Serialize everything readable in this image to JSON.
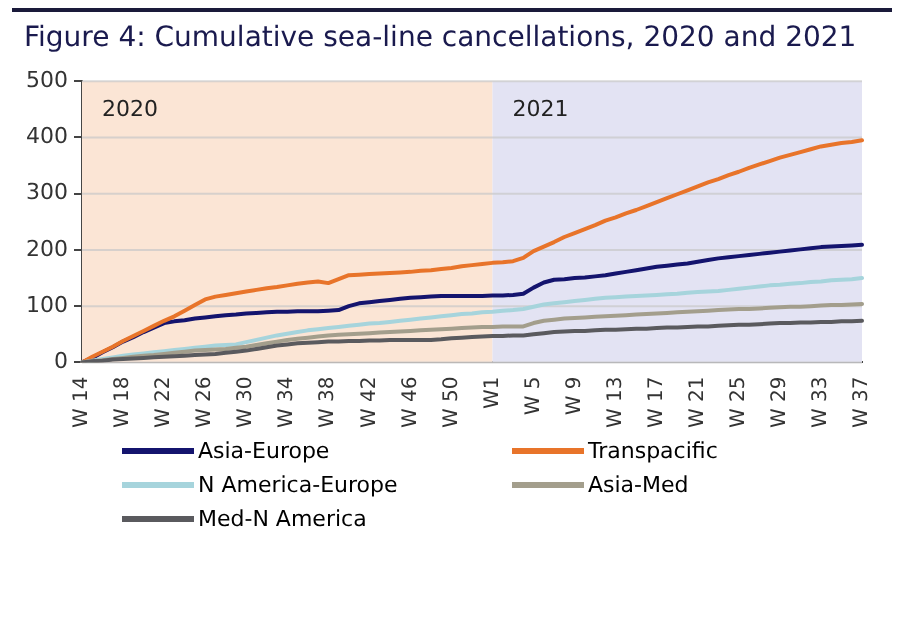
{
  "chart_data": {
    "type": "line",
    "title": "Figure 4: Cumulative sea-line cancellations, 2020 and 2021",
    "categories": [
      "W 14",
      null,
      null,
      null,
      "W 18",
      null,
      null,
      null,
      "W 22",
      null,
      null,
      null,
      "W 26",
      null,
      null,
      null,
      "W 30",
      null,
      null,
      null,
      "W 34",
      null,
      null,
      null,
      "W 38",
      null,
      null,
      null,
      "W 42",
      null,
      null,
      null,
      "W 46",
      null,
      null,
      null,
      "W 50",
      null,
      null,
      null,
      "W1",
      null,
      null,
      null,
      "W 5",
      null,
      null,
      null,
      "W 9",
      null,
      null,
      null,
      "W 13",
      null,
      null,
      null,
      "W 17",
      null,
      null,
      null,
      "W 21",
      null,
      null,
      null,
      "W 25",
      null,
      null,
      null,
      "W 29",
      null,
      null,
      null,
      "W 33",
      null,
      null,
      null,
      "W 37"
    ],
    "series": [
      {
        "name": "Asia-Europe",
        "color": "#14146e",
        "values": [
          0,
          8,
          18,
          27,
          37,
          45,
          54,
          62,
          70,
          73,
          75,
          78,
          80,
          82,
          84,
          85,
          87,
          88,
          89,
          90,
          90,
          91,
          91,
          91,
          92,
          93,
          100,
          105,
          107,
          109,
          111,
          113,
          115,
          116,
          117,
          118,
          118,
          118,
          118,
          118,
          119,
          119,
          120,
          122,
          133,
          142,
          147,
          148,
          150,
          151,
          153,
          155,
          158,
          161,
          164,
          167,
          170,
          172,
          174,
          176,
          179,
          182,
          185,
          187,
          189,
          191,
          193,
          195,
          197,
          199,
          201,
          203,
          205,
          206,
          207,
          208,
          209
        ]
      },
      {
        "name": "Transpacific",
        "color": "#e8742a",
        "values": [
          0,
          10,
          19,
          28,
          38,
          47,
          56,
          65,
          74,
          82,
          92,
          102,
          112,
          117,
          120,
          123,
          126,
          129,
          132,
          134,
          137,
          140,
          142,
          144,
          141,
          148,
          155,
          156,
          157,
          158,
          159,
          160,
          161,
          163,
          164,
          166,
          168,
          171,
          173,
          175,
          177,
          178,
          180,
          186,
          198,
          206,
          214,
          223,
          230,
          237,
          244,
          252,
          258,
          265,
          271,
          278,
          285,
          292,
          299,
          306,
          313,
          320,
          326,
          333,
          339,
          346,
          352,
          358,
          364,
          369,
          374,
          379,
          384,
          387,
          390,
          392,
          395
        ]
      },
      {
        "name": "N America-Europe",
        "color": "#a6d4dc",
        "values": [
          0,
          3,
          6,
          9,
          12,
          14,
          16,
          18,
          20,
          22,
          24,
          26,
          28,
          30,
          31,
          32,
          36,
          40,
          44,
          48,
          51,
          54,
          57,
          59,
          61,
          63,
          65,
          67,
          69,
          70,
          72,
          74,
          76,
          78,
          80,
          82,
          84,
          86,
          87,
          89,
          90,
          92,
          93,
          95,
          99,
          103,
          105,
          107,
          109,
          111,
          113,
          115,
          116,
          117,
          118,
          119,
          120,
          121,
          122,
          124,
          125,
          126,
          127,
          129,
          131,
          133,
          135,
          137,
          138,
          140,
          141,
          143,
          144,
          146,
          147,
          148,
          150
        ]
      },
      {
        "name": "Asia-Med",
        "color": "#a39e8c",
        "values": [
          0,
          2,
          4,
          6,
          8,
          10,
          12,
          13,
          15,
          17,
          19,
          21,
          22,
          23,
          24,
          26,
          28,
          31,
          34,
          37,
          40,
          42,
          44,
          46,
          48,
          49,
          50,
          51,
          52,
          53,
          54,
          55,
          56,
          57,
          58,
          59,
          60,
          61,
          62,
          63,
          63,
          64,
          64,
          64,
          70,
          74,
          76,
          78,
          79,
          80,
          81,
          82,
          83,
          84,
          85,
          86,
          87,
          88,
          89,
          90,
          91,
          92,
          93,
          94,
          95,
          95,
          96,
          97,
          98,
          99,
          99,
          100,
          101,
          102,
          102,
          103,
          104
        ]
      },
      {
        "name": "Med-N America",
        "color": "#5a5a5e",
        "values": [
          0,
          2,
          3,
          5,
          6,
          7,
          8,
          9,
          10,
          11,
          12,
          13,
          14,
          15,
          17,
          19,
          21,
          24,
          27,
          30,
          32,
          34,
          35,
          36,
          37,
          37,
          38,
          38,
          39,
          39,
          40,
          40,
          40,
          40,
          40,
          41,
          43,
          44,
          45,
          46,
          47,
          47,
          48,
          48,
          50,
          52,
          54,
          55,
          56,
          56,
          57,
          58,
          58,
          59,
          60,
          60,
          61,
          62,
          62,
          63,
          64,
          64,
          65,
          66,
          67,
          67,
          68,
          69,
          70,
          70,
          71,
          71,
          72,
          72,
          73,
          73,
          74
        ]
      }
    ],
    "ylim": [
      0,
      500
    ],
    "yticks": [
      0,
      100,
      200,
      300,
      400,
      500
    ],
    "grid": "y",
    "legend": "bottom",
    "marker": "none",
    "line_style": "solid",
    "bands": [
      {
        "axis": "x",
        "from": "W 14",
        "to": "W1",
        "label": "2020",
        "color": "#fbe5d5"
      },
      {
        "axis": "x",
        "from": "W1",
        "to": "W 37",
        "label": "2021",
        "color": "#e3e3f3"
      }
    ]
  }
}
